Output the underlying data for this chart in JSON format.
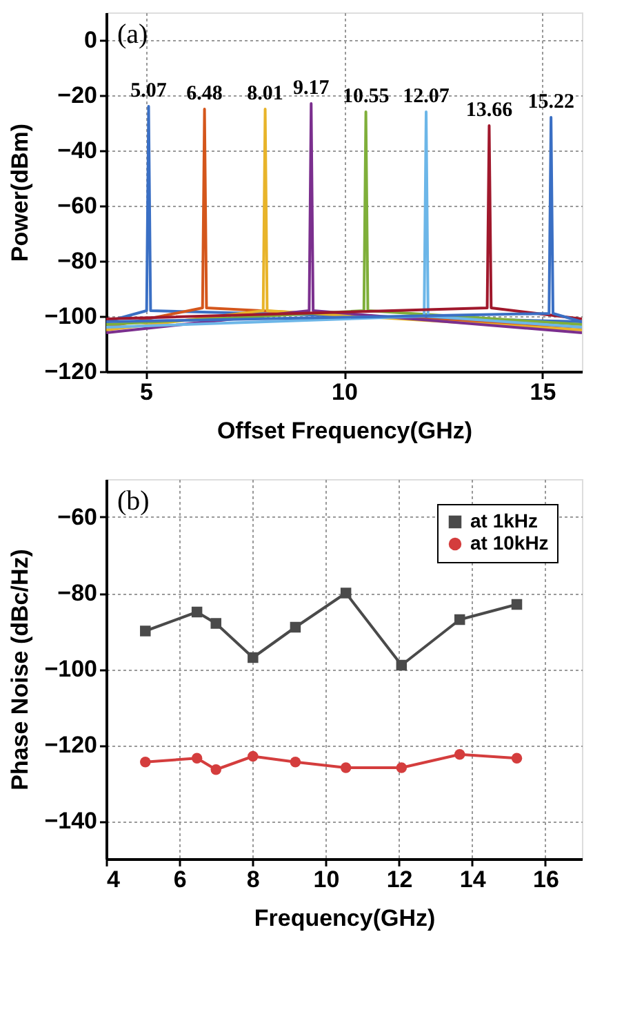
{
  "chart_data": [
    {
      "type": "line",
      "xlabel": "Offset Frequency(GHz)",
      "ylabel": "Power(dBm)",
      "xlim": [
        4,
        16
      ],
      "ylim": [
        -120,
        10
      ],
      "xticks": [
        5,
        10,
        15
      ],
      "yticks": [
        0,
        -20,
        -40,
        -60,
        -80,
        -100,
        -120
      ],
      "grid": true,
      "legend": false,
      "marker": "none",
      "line_style": "solid",
      "series": [
        {
          "color": "#3a6fc4",
          "x": [
            4,
            5.02,
            5.07,
            5.12,
            16
          ],
          "values": [
            -102,
            -98,
            -24,
            -98,
            -102
          ]
        },
        {
          "color": "#d4561c",
          "x": [
            4,
            6.43,
            6.48,
            6.53,
            16
          ],
          "values": [
            -104,
            -97,
            -25,
            -97,
            -104
          ]
        },
        {
          "color": "#e8b42a",
          "x": [
            4,
            7.96,
            8.01,
            8.06,
            16
          ],
          "values": [
            -105,
            -98,
            -25,
            -98,
            -105
          ]
        },
        {
          "color": "#7b2f8e",
          "x": [
            4,
            9.12,
            9.17,
            9.22,
            16
          ],
          "values": [
            -106,
            -98,
            -23,
            -98,
            -106
          ]
        },
        {
          "color": "#7faf3a",
          "x": [
            4,
            10.5,
            10.55,
            10.6,
            16
          ],
          "values": [
            -103,
            -98,
            -26,
            -98,
            -103
          ]
        },
        {
          "color": "#6cb6e8",
          "x": [
            4,
            12.02,
            12.07,
            12.12,
            16
          ],
          "values": [
            -104,
            -100,
            -26,
            -100,
            -104
          ]
        },
        {
          "color": "#a0182c",
          "x": [
            4,
            13.61,
            13.66,
            13.71,
            16
          ],
          "values": [
            -101,
            -97,
            -31,
            -97,
            -101
          ]
        },
        {
          "color": "#3a6fc4",
          "x": [
            4,
            15.17,
            15.22,
            15.27,
            16
          ],
          "values": [
            -102,
            -99,
            -28,
            -99,
            -102
          ]
        }
      ],
      "annotations": [
        "(a)",
        {
          "text": "5.07",
          "x": 5.07,
          "y": -24
        },
        {
          "text": "6.48",
          "x": 6.48,
          "y": -25
        },
        {
          "text": "8.01",
          "x": 8.01,
          "y": -25
        },
        {
          "text": "9.17",
          "x": 9.17,
          "y": -23
        },
        {
          "text": "10.55",
          "x": 10.55,
          "y": -26
        },
        {
          "text": "12.07",
          "x": 12.07,
          "y": -26
        },
        {
          "text": "13.66",
          "x": 13.66,
          "y": -31
        },
        {
          "text": "15.22",
          "x": 15.22,
          "y": -28
        }
      ]
    },
    {
      "type": "line",
      "xlabel": "Frequency(GHz)",
      "ylabel": "Phase Noise (dBc/Hz)",
      "xlim": [
        4,
        17
      ],
      "ylim": [
        -150,
        -50
      ],
      "xticks": [
        4,
        6,
        8,
        10,
        12,
        14,
        16
      ],
      "yticks": [
        -60,
        -80,
        -100,
        -120,
        -140
      ],
      "grid": true,
      "legend": "top right",
      "line_style": "solid",
      "x": [
        5.07,
        6.48,
        7.0,
        8.01,
        9.17,
        10.55,
        12.07,
        13.66,
        15.22
      ],
      "series": [
        {
          "name": "at 1kHz",
          "color": "#4a4a4a",
          "marker": "square",
          "values": [
            -90,
            -85,
            -88,
            -97,
            -89,
            -80,
            -99,
            -87,
            -83
          ]
        },
        {
          "name": "at 10kHz",
          "color": "#d43d3d",
          "marker": "circle",
          "values": [
            -124.5,
            -123.5,
            -126.5,
            -123,
            -124.5,
            -126,
            -126,
            -122.5,
            -123.5
          ]
        }
      ],
      "annotations": [
        "(b)"
      ]
    }
  ]
}
